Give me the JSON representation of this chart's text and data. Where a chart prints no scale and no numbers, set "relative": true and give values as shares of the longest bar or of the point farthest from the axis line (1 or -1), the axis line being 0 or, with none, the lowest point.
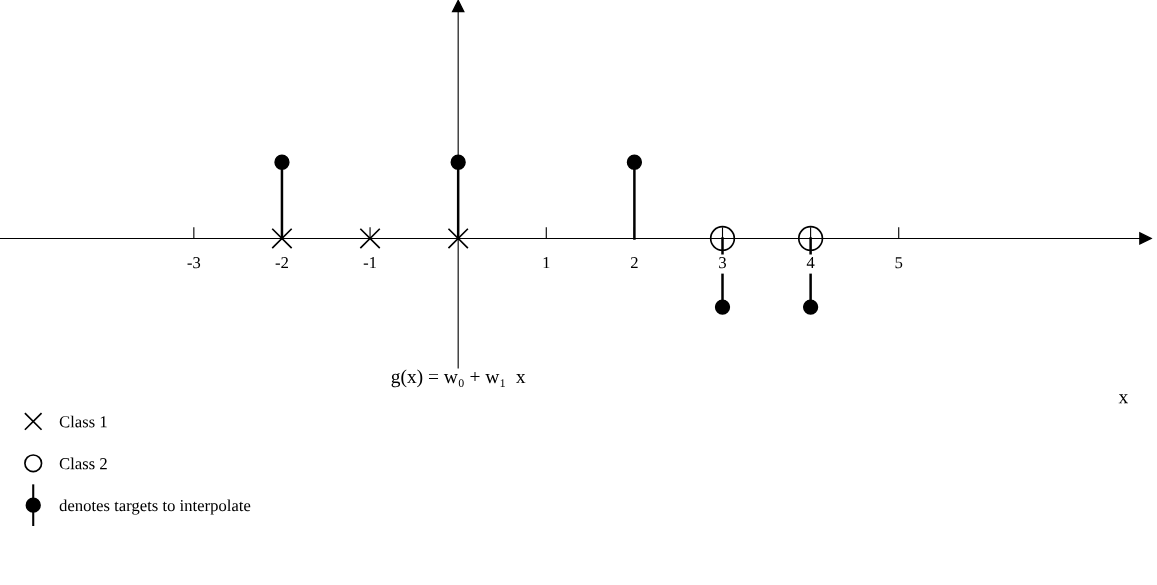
{
  "chart_data": {
    "type": "lollipop",
    "xlabel": "x",
    "annotations": [
      "g(x) = w₀ + w₁  x"
    ],
    "relative": true,
    "xlim": [
      -5.2,
      7.8
    ],
    "xticks": [
      -3,
      -2,
      -1,
      1,
      2,
      3,
      4,
      5
    ],
    "legend": "bottom left",
    "grid": false,
    "series": [
      {
        "name": "Class 1",
        "type": "scatter",
        "marker": "cross",
        "color": "#000000",
        "x": [
          -2,
          -1,
          0
        ],
        "values": [
          0,
          0,
          0
        ]
      },
      {
        "name": "Class 2",
        "type": "scatter",
        "marker": "circle",
        "color": "#000000",
        "x": [
          3,
          4
        ],
        "values": [
          0,
          0
        ]
      },
      {
        "name": "denotes targets to interpolate",
        "marker": "circle",
        "color": "#000000",
        "x": [
          -2,
          0,
          2,
          3,
          4
        ],
        "values": [
          1,
          1,
          1,
          -0.9,
          -0.9
        ]
      }
    ]
  }
}
